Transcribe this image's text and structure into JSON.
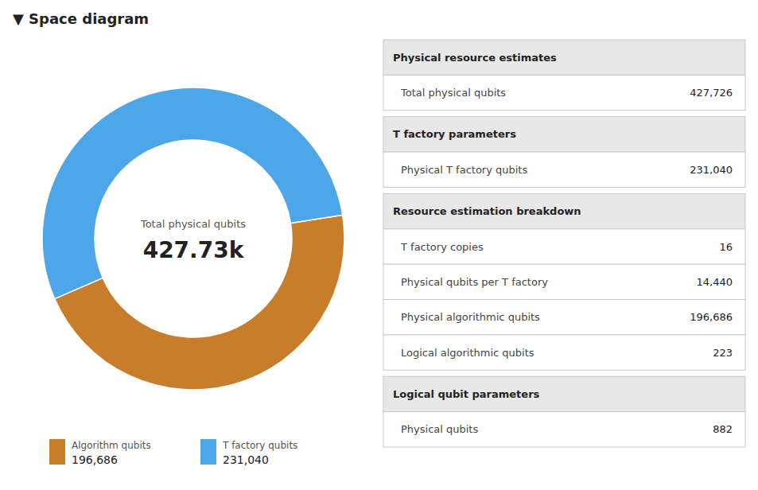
{
  "chart_data": [
    {
      "type": "pie",
      "title": "▼ Space diagram",
      "categories": [
        "Algorithm qubits",
        "T factory qubits"
      ],
      "values": [
        196686,
        231040
      ],
      "value_labels": [
        "196,686",
        "231,040"
      ],
      "colors": [
        "#c87d2a",
        "#4da6e8"
      ],
      "legend": "lower left",
      "annotations": [
        "Total physical qubits",
        "427.73k"
      ]
    },
    {
      "type": "table",
      "sections": [
        {
          "header": "Physical resource estimates",
          "categories": [
            "Total physical qubits"
          ],
          "values": [
            427726
          ],
          "value_labels": [
            "427,726"
          ]
        },
        {
          "header": "T factory parameters",
          "categories": [
            "Physical T factory qubits"
          ],
          "values": [
            231040
          ],
          "value_labels": [
            "231,040"
          ]
        },
        {
          "header": "Resource estimation breakdown",
          "categories": [
            "T factory copies",
            "Physical qubits per T factory",
            "Physical algorithmic qubits",
            "Logical algorithmic qubits"
          ],
          "values": [
            16,
            14440,
            196686,
            223
          ],
          "value_labels": [
            "16",
            "14,440",
            "196,686",
            "223"
          ]
        },
        {
          "header": "Logical qubit parameters",
          "categories": [
            "Physical qubits"
          ],
          "values": [
            882
          ],
          "value_labels": [
            "882"
          ]
        }
      ]
    }
  ]
}
